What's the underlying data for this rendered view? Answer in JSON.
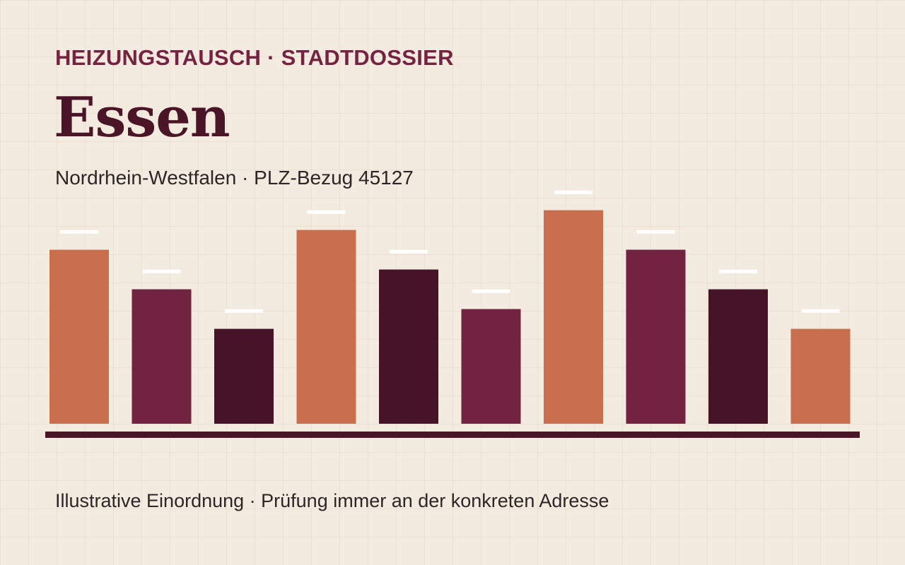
{
  "header": {
    "kicker": "HEIZUNGSTAUSCH · STADTDOSSIER",
    "city": "Essen",
    "subtitle": "Nordrhein-Westfalen · PLZ-Bezug 45127"
  },
  "footer": {
    "note": "Illustrative Einordnung · Prüfung immer an der konkreten Adresse"
  },
  "colors": {
    "background": "#f3ebe0",
    "terracotta": "#c96f4e",
    "berry": "#722340",
    "wine": "#471427",
    "baseline": "#4b1528",
    "marker": "#ffffff"
  },
  "chart_data": {
    "type": "bar",
    "title": "",
    "xlabel": "",
    "ylabel": "",
    "ylim": [
      0,
      12
    ],
    "grid": false,
    "legend": "none",
    "categories": [
      "",
      "",
      "",
      "",
      "",
      "",
      "",
      "",
      "",
      ""
    ],
    "values": [
      8.8,
      6.8,
      4.8,
      9.8,
      7.8,
      5.8,
      10.8,
      8.8,
      6.8,
      4.8
    ],
    "bar_colors": [
      "#c96f4e",
      "#722340",
      "#471427",
      "#c96f4e",
      "#471427",
      "#722340",
      "#c96f4e",
      "#722340",
      "#471427",
      "#c96f4e"
    ],
    "marker_offset": 0.9
  }
}
